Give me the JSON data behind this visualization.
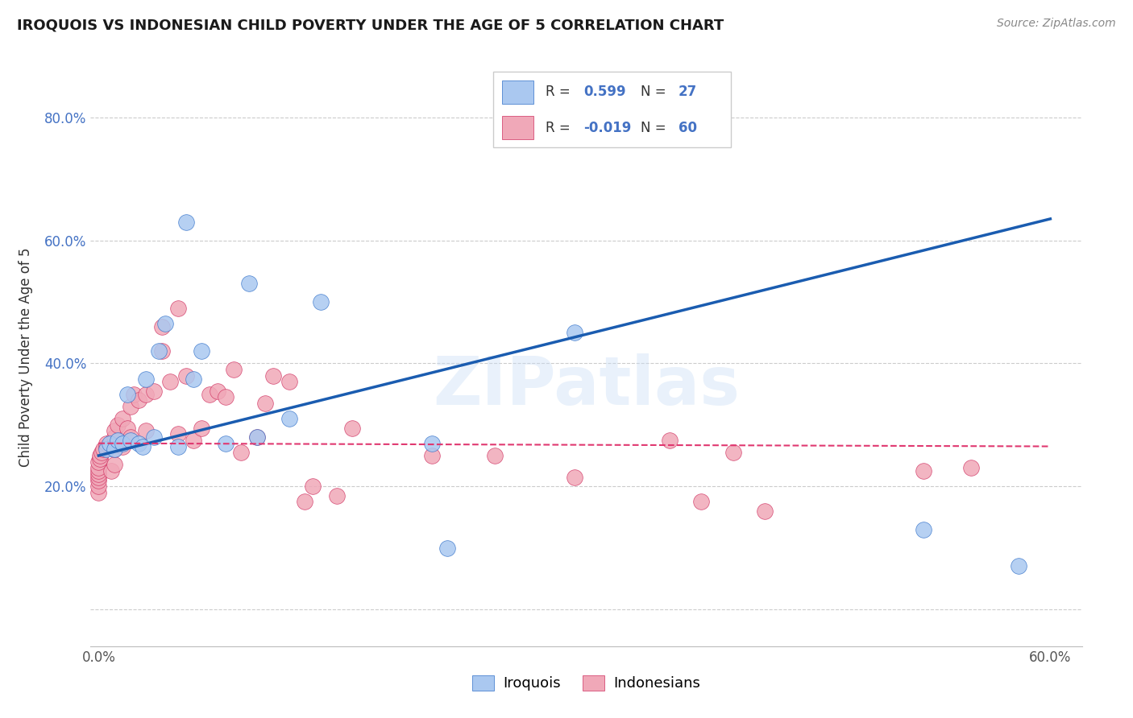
{
  "title": "IROQUOIS VS INDONESIAN CHILD POVERTY UNDER THE AGE OF 5 CORRELATION CHART",
  "source": "Source: ZipAtlas.com",
  "ylabel": "Child Poverty Under the Age of 5",
  "xlim": [
    -0.005,
    0.62
  ],
  "ylim": [
    -0.06,
    0.88
  ],
  "iroquois_R": 0.599,
  "iroquois_N": 27,
  "indonesian_R": -0.019,
  "indonesian_N": 60,
  "iroquois_color": "#aac8f0",
  "iroquois_edge_color": "#3070c8",
  "indonesian_color": "#f0a8b8",
  "indonesian_edge_color": "#d03060",
  "iroquois_line_color": "#1a5cb0",
  "indonesian_line_color": "#e03870",
  "watermark": "ZIPatlas",
  "iroquois_x": [
    0.005,
    0.007,
    0.01,
    0.012,
    0.015,
    0.018,
    0.02,
    0.025,
    0.028,
    0.03,
    0.035,
    0.038,
    0.042,
    0.05,
    0.055,
    0.06,
    0.065,
    0.08,
    0.095,
    0.1,
    0.12,
    0.14,
    0.21,
    0.22,
    0.3,
    0.52,
    0.58
  ],
  "iroquois_y": [
    0.26,
    0.27,
    0.26,
    0.275,
    0.27,
    0.35,
    0.275,
    0.27,
    0.265,
    0.375,
    0.28,
    0.42,
    0.465,
    0.265,
    0.63,
    0.375,
    0.42,
    0.27,
    0.53,
    0.28,
    0.31,
    0.5,
    0.27,
    0.1,
    0.45,
    0.13,
    0.07
  ],
  "indonesian_x": [
    0.0,
    0.0,
    0.0,
    0.0,
    0.0,
    0.0,
    0.0,
    0.0,
    0.001,
    0.001,
    0.002,
    0.003,
    0.005,
    0.005,
    0.008,
    0.01,
    0.01,
    0.01,
    0.01,
    0.012,
    0.015,
    0.015,
    0.018,
    0.02,
    0.02,
    0.022,
    0.025,
    0.03,
    0.03,
    0.035,
    0.04,
    0.04,
    0.045,
    0.05,
    0.05,
    0.055,
    0.06,
    0.065,
    0.07,
    0.075,
    0.08,
    0.085,
    0.09,
    0.1,
    0.105,
    0.11,
    0.12,
    0.13,
    0.135,
    0.15,
    0.16,
    0.21,
    0.25,
    0.3,
    0.36,
    0.38,
    0.4,
    0.42,
    0.52,
    0.55
  ],
  "indonesian_y": [
    0.19,
    0.2,
    0.21,
    0.215,
    0.22,
    0.225,
    0.23,
    0.24,
    0.245,
    0.25,
    0.255,
    0.26,
    0.265,
    0.27,
    0.225,
    0.235,
    0.26,
    0.28,
    0.29,
    0.3,
    0.265,
    0.31,
    0.295,
    0.28,
    0.33,
    0.35,
    0.34,
    0.29,
    0.35,
    0.355,
    0.42,
    0.46,
    0.37,
    0.285,
    0.49,
    0.38,
    0.275,
    0.295,
    0.35,
    0.355,
    0.345,
    0.39,
    0.255,
    0.28,
    0.335,
    0.38,
    0.37,
    0.175,
    0.2,
    0.185,
    0.295,
    0.25,
    0.25,
    0.215,
    0.275,
    0.175,
    0.255,
    0.16,
    0.225,
    0.23
  ]
}
